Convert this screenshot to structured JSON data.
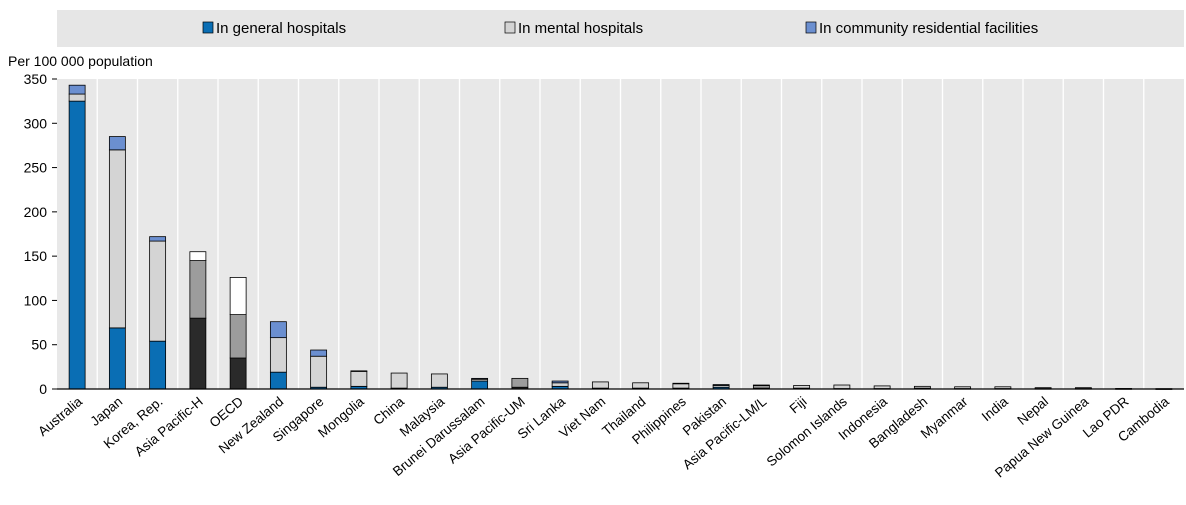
{
  "chart_data": {
    "type": "bar",
    "stacked": true,
    "ylabel": "Per 100 000 population",
    "ylim": [
      0,
      350
    ],
    "yticks": [
      0,
      50,
      100,
      150,
      200,
      250,
      300,
      350
    ],
    "grid": "vertical-category-separators",
    "legend_position": "top",
    "categories": [
      "Australia",
      "Japan",
      "Korea, Rep.",
      "Asia Pacific-H",
      "OECD",
      "New Zealand",
      "Singapore",
      "Mongolia",
      "China",
      "Malaysia",
      "Brunei Darussalam",
      "Asia Pacific-UM",
      "Sri Lanka",
      "Viet Nam",
      "Thailand",
      "Philippines",
      "Pakistan",
      "Asia Pacific-LM/L",
      "Fiji",
      "Solomon Islands",
      "Indonesia",
      "Bangladesh",
      "Myanmar",
      "India",
      "Nepal",
      "Papua New Guinea",
      "Lao PDR",
      "Cambodia"
    ],
    "series": [
      {
        "name": "In general hospitals",
        "values": [
          325,
          69,
          54,
          80,
          35,
          19,
          2,
          3,
          1,
          2,
          9,
          2,
          3,
          1,
          1,
          1,
          2,
          1,
          1,
          0.5,
          0.5,
          1,
          0.5,
          0.5,
          0.5,
          0.5,
          0.3,
          0.2
        ]
      },
      {
        "name": "In mental hospitals",
        "values": [
          8,
          201,
          113,
          65,
          49,
          39,
          35,
          17,
          17,
          15,
          2,
          10,
          4,
          7,
          6,
          5,
          2,
          3,
          3,
          4,
          3,
          2,
          2,
          2,
          1,
          1,
          0.3,
          0.2
        ]
      },
      {
        "name": "In community residential facilities",
        "values": [
          10,
          15,
          5,
          10,
          42,
          18,
          7,
          0.5,
          0,
          0,
          1,
          0,
          2,
          0,
          0,
          0.5,
          1,
          0.5,
          0,
          0,
          0,
          0,
          0,
          0,
          0,
          0,
          0,
          0
        ]
      }
    ],
    "colors": {
      "country": [
        "#0a6eb4",
        "#d4d4d4",
        "#6b8fd0"
      ],
      "aggregate": [
        "#2a2a2a",
        "#9c9c9c",
        "#ffffff"
      ]
    },
    "aggregate_categories": [
      "Asia Pacific-H",
      "OECD",
      "Asia Pacific-UM",
      "Asia Pacific-LM/L"
    ]
  }
}
